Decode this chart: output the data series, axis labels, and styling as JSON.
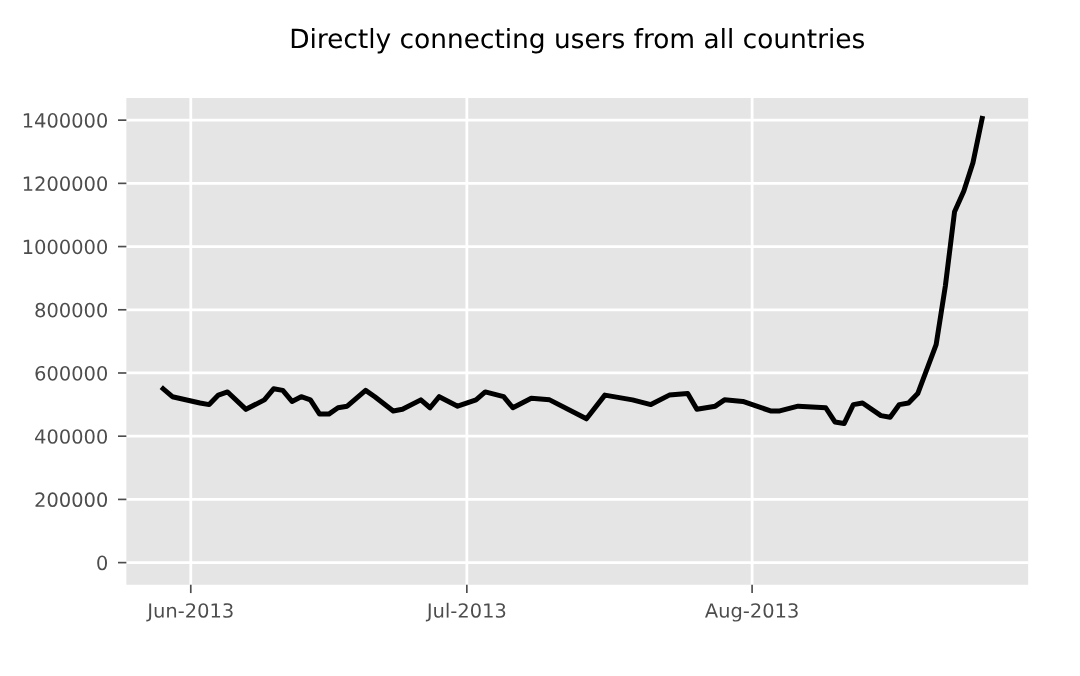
{
  "chart_data": {
    "type": "line",
    "title": "Directly connecting users from all countries",
    "x": [
      "2013-05-29",
      "2013-05-30",
      "2013-06-02",
      "2013-06-03",
      "2013-06-04",
      "2013-06-05",
      "2013-06-07",
      "2013-06-09",
      "2013-06-10",
      "2013-06-11",
      "2013-06-12",
      "2013-06-13",
      "2013-06-14",
      "2013-06-15",
      "2013-06-16",
      "2013-06-17",
      "2013-06-18",
      "2013-06-20",
      "2013-06-21",
      "2013-06-23",
      "2013-06-24",
      "2013-06-26",
      "2013-06-27",
      "2013-06-28",
      "2013-06-30",
      "2013-07-02",
      "2013-07-03",
      "2013-07-05",
      "2013-07-06",
      "2013-07-08",
      "2013-07-10",
      "2013-07-14",
      "2013-07-16",
      "2013-07-19",
      "2013-07-21",
      "2013-07-23",
      "2013-07-25",
      "2013-07-26",
      "2013-07-28",
      "2013-07-29",
      "2013-07-31",
      "2013-08-03",
      "2013-08-04",
      "2013-08-06",
      "2013-08-09",
      "2013-08-10",
      "2013-08-11",
      "2013-08-12",
      "2013-08-13",
      "2013-08-15",
      "2013-08-16",
      "2013-08-17",
      "2013-08-18",
      "2013-08-19",
      "2013-08-21",
      "2013-08-22",
      "2013-08-23",
      "2013-08-24",
      "2013-08-25",
      "2013-08-26"
    ],
    "series": [
      {
        "color": "#000000",
        "values": [
          550000,
          525000,
          505000,
          500000,
          530000,
          540000,
          485000,
          515000,
          550000,
          545000,
          510000,
          525000,
          515000,
          470000,
          470000,
          490000,
          495000,
          545000,
          525000,
          480000,
          485000,
          515000,
          490000,
          525000,
          495000,
          515000,
          540000,
          525000,
          490000,
          520000,
          515000,
          455000,
          530000,
          515000,
          500000,
          530000,
          535000,
          485000,
          495000,
          515000,
          510000,
          480000,
          480000,
          495000,
          490000,
          445000,
          440000,
          500000,
          505000,
          465000,
          460000,
          500000,
          505000,
          535000,
          690000,
          875000,
          1110000,
          1175000,
          1265000,
          1405000
        ]
      }
    ],
    "xlim": [
      "2013-05-25",
      "2013-08-31"
    ],
    "xticks": [
      {
        "value": "2013-06-01",
        "label": "Jun-2013"
      },
      {
        "value": "2013-07-01",
        "label": "Jul-2013"
      },
      {
        "value": "2013-08-01",
        "label": "Aug-2013"
      }
    ],
    "ylim": [
      -70000,
      1470000
    ],
    "yticks": [
      0,
      200000,
      400000,
      600000,
      800000,
      1000000,
      1200000,
      1400000
    ],
    "grid": true,
    "marker": "none",
    "line_style": "solid"
  }
}
